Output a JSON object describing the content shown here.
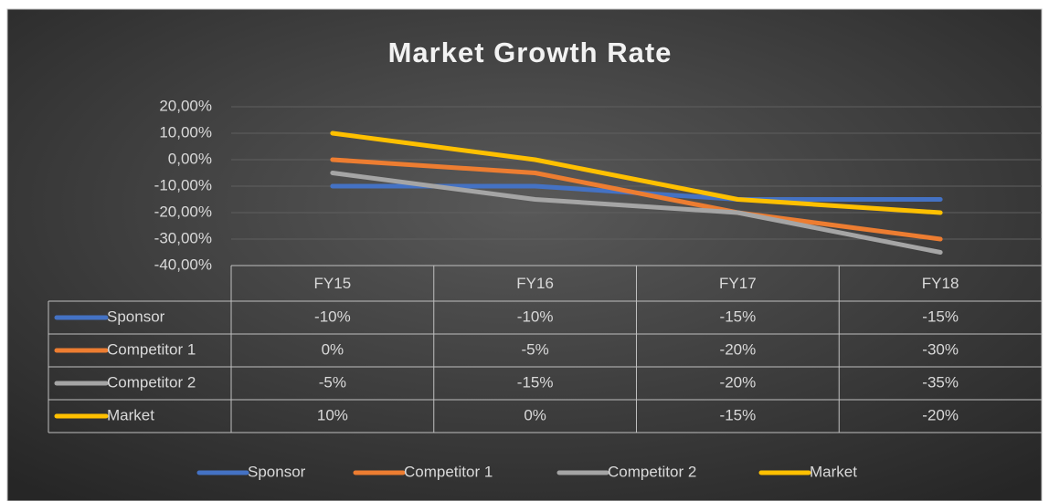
{
  "chart_data": {
    "type": "line",
    "title": "Market Growth Rate",
    "categories": [
      "FY15",
      "FY16",
      "FY17",
      "FY18"
    ],
    "series": [
      {
        "name": "Sponsor",
        "color": "#4472c4",
        "values": [
          -10,
          -10,
          -15,
          -15
        ],
        "value_labels": [
          "-10%",
          "-10%",
          "-15%",
          "-15%"
        ]
      },
      {
        "name": "Competitor 1",
        "color": "#ed7d31",
        "values": [
          0,
          -5,
          -20,
          -30
        ],
        "value_labels": [
          "0%",
          "-5%",
          "-20%",
          "-30%"
        ]
      },
      {
        "name": "Competitor 2",
        "color": "#a5a5a5",
        "values": [
          -5,
          -15,
          -20,
          -35
        ],
        "value_labels": [
          "-5%",
          "-15%",
          "-20%",
          "-35%"
        ]
      },
      {
        "name": "Market",
        "color": "#ffc000",
        "values": [
          10,
          0,
          -15,
          -20
        ],
        "value_labels": [
          "10%",
          "0%",
          "-15%",
          "-20%"
        ]
      }
    ],
    "ylim": [
      -40,
      20
    ],
    "yticks": [
      {
        "value": -40,
        "label": "-40,00%"
      },
      {
        "value": -30,
        "label": "-30,00%"
      },
      {
        "value": -20,
        "label": "-20,00%"
      },
      {
        "value": -10,
        "label": "-10,00%"
      },
      {
        "value": 0,
        "label": "0,00%"
      },
      {
        "value": 10,
        "label": "10,00%"
      },
      {
        "value": 20,
        "label": "20,00%"
      }
    ],
    "grid": true,
    "data_table": true,
    "legend": "bottom"
  }
}
